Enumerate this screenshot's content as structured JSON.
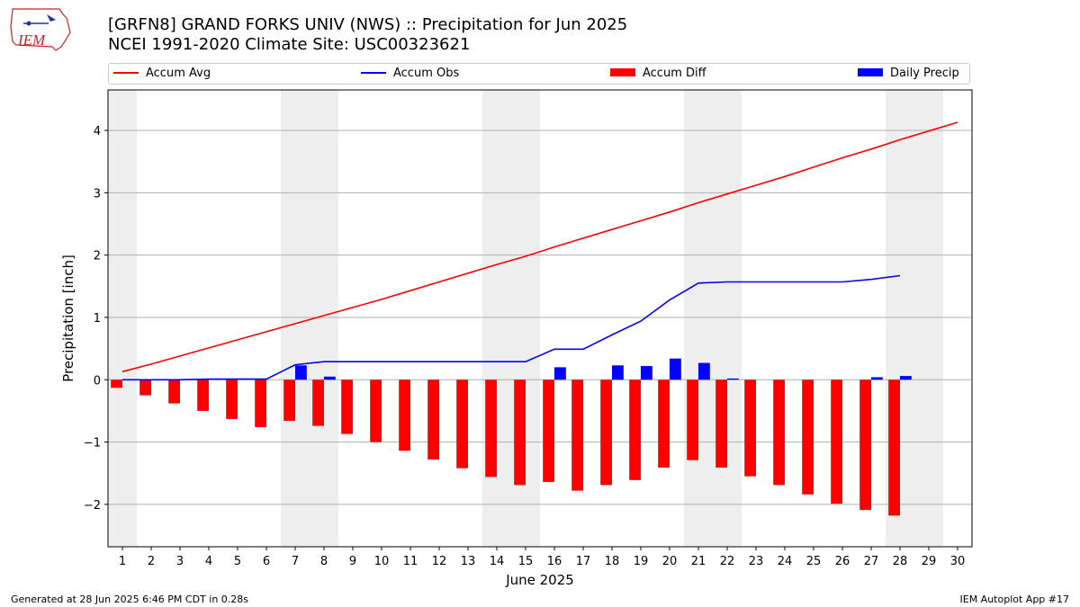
{
  "header": {
    "title_line1": "[GRFN8] GRAND FORKS UNIV (NWS) :: Precipitation for Jun 2025",
    "title_line2": "NCEI 1991-2020 Climate Site: USC00323621",
    "logo_text": "IEM"
  },
  "footer": {
    "generated": "Generated at 28 Jun 2025 6:46 PM CDT in 0.28s",
    "app": "IEM Autoplot App #17"
  },
  "colors": {
    "accum_avg": "#ff0000",
    "accum_obs": "#0000ff",
    "accum_diff": "#ff0000",
    "daily_precip": "#0000ff",
    "weekend_shade": "#eeeeee",
    "grid": "#b0b0b0"
  },
  "chart_data": {
    "type": "bar",
    "xlabel": "June 2025",
    "ylabel": "Precipitation [inch]",
    "xlim": [
      0.5,
      30.5
    ],
    "ylim": [
      -2.68,
      4.65
    ],
    "x_ticks": [
      1,
      2,
      3,
      4,
      5,
      6,
      7,
      8,
      9,
      10,
      11,
      12,
      13,
      14,
      15,
      16,
      17,
      18,
      19,
      20,
      21,
      22,
      23,
      24,
      25,
      26,
      27,
      28,
      29,
      30
    ],
    "y_ticks": [
      -2,
      -1,
      0,
      1,
      2,
      3,
      4
    ],
    "grid": "horizontal",
    "legend": "top, horizontal",
    "weekend_shaded_days": [
      [
        0.5,
        1.5
      ],
      [
        6.5,
        8.5
      ],
      [
        13.5,
        15.5
      ],
      [
        20.5,
        22.5
      ],
      [
        27.5,
        29.5
      ]
    ],
    "series": [
      {
        "name": "Accum Avg",
        "kind": "line",
        "x": [
          1,
          2,
          3,
          4,
          5,
          6,
          7,
          8,
          9,
          10,
          11,
          12,
          13,
          14,
          15,
          16,
          17,
          18,
          19,
          20,
          21,
          22,
          23,
          24,
          25,
          26,
          27,
          28,
          29,
          30
        ],
        "values": [
          0.13,
          0.25,
          0.38,
          0.51,
          0.64,
          0.77,
          0.9,
          1.03,
          1.16,
          1.29,
          1.43,
          1.57,
          1.71,
          1.85,
          1.98,
          2.13,
          2.27,
          2.41,
          2.55,
          2.69,
          2.84,
          2.98,
          3.12,
          3.26,
          3.41,
          3.56,
          3.7,
          3.85,
          3.99,
          4.13
        ]
      },
      {
        "name": "Accum Obs",
        "kind": "line",
        "x": [
          1,
          2,
          3,
          4,
          5,
          6,
          7,
          8,
          9,
          10,
          11,
          12,
          13,
          14,
          15,
          16,
          17,
          18,
          19,
          20,
          21,
          22,
          23,
          24,
          25,
          26,
          27,
          28
        ],
        "values": [
          0.0,
          0.0,
          0.0,
          0.01,
          0.01,
          0.01,
          0.24,
          0.29,
          0.29,
          0.29,
          0.29,
          0.29,
          0.29,
          0.29,
          0.29,
          0.49,
          0.49,
          0.72,
          0.94,
          1.28,
          1.55,
          1.57,
          1.57,
          1.57,
          1.57,
          1.57,
          1.61,
          1.67
        ]
      },
      {
        "name": "Accum Diff",
        "kind": "bar",
        "x": [
          1,
          2,
          3,
          4,
          5,
          6,
          7,
          8,
          9,
          10,
          11,
          12,
          13,
          14,
          15,
          16,
          17,
          18,
          19,
          20,
          21,
          22,
          23,
          24,
          25,
          26,
          27,
          28
        ],
        "values": [
          -0.13,
          -0.25,
          -0.38,
          -0.5,
          -0.63,
          -0.76,
          -0.66,
          -0.74,
          -0.87,
          -1.0,
          -1.14,
          -1.28,
          -1.42,
          -1.56,
          -1.69,
          -1.64,
          -1.78,
          -1.69,
          -1.61,
          -1.41,
          -1.29,
          -1.41,
          -1.55,
          -1.69,
          -1.84,
          -1.99,
          -2.09,
          -2.18
        ]
      },
      {
        "name": "Daily Precip",
        "kind": "bar",
        "x": [
          1,
          2,
          3,
          4,
          5,
          6,
          7,
          8,
          9,
          10,
          11,
          12,
          13,
          14,
          15,
          16,
          17,
          18,
          19,
          20,
          21,
          22,
          23,
          24,
          25,
          26,
          27,
          28
        ],
        "values": [
          0.0,
          0.0,
          0.0,
          0.01,
          0.0,
          0.0,
          0.23,
          0.05,
          0.0,
          0.0,
          0.0,
          0.0,
          0.0,
          0.0,
          0.0,
          0.2,
          0.0,
          0.23,
          0.22,
          0.34,
          0.27,
          0.02,
          0.0,
          0.0,
          0.0,
          0.0,
          0.04,
          0.06
        ]
      }
    ]
  }
}
